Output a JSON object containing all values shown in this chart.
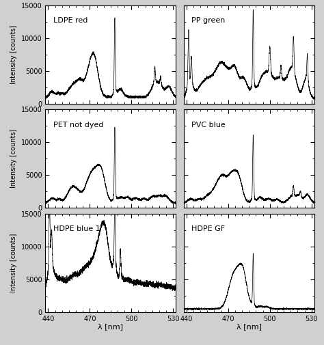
{
  "panels": [
    {
      "label": "LDPE red",
      "row": 0,
      "col": 0
    },
    {
      "label": "PP green",
      "row": 0,
      "col": 1
    },
    {
      "label": "PET not dyed",
      "row": 1,
      "col": 0
    },
    {
      "label": "PVC blue",
      "row": 1,
      "col": 1
    },
    {
      "label": "HDPE blue 1",
      "row": 2,
      "col": 0
    },
    {
      "label": "HDPE GF",
      "row": 2,
      "col": 1
    }
  ],
  "xlim": [
    438,
    532
  ],
  "ylim": [
    0,
    15000
  ],
  "yticks": [
    0,
    5000,
    10000,
    15000
  ],
  "xticks": [
    440,
    470,
    500,
    530
  ],
  "xlabel": "λ [nm]",
  "ylabel": "Intensity [counts]",
  "figsize": [
    4.74,
    5.05
  ],
  "dpi": 100,
  "line_color": "#000000"
}
